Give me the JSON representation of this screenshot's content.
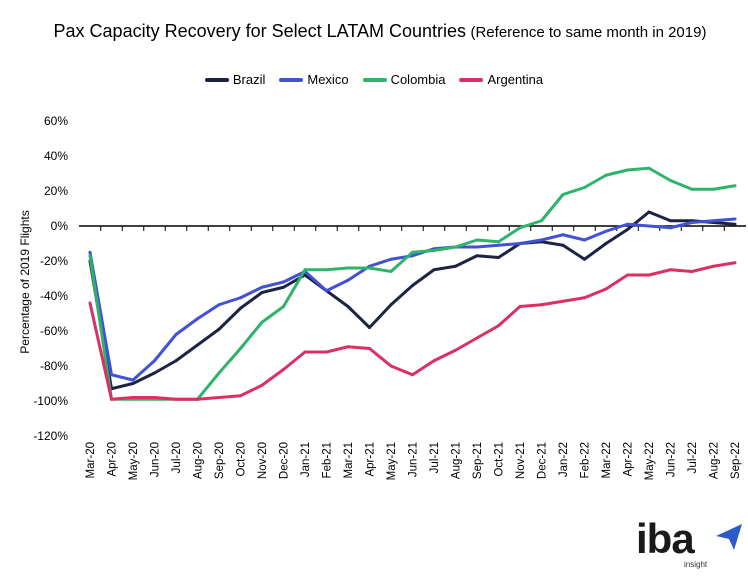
{
  "chart_data": {
    "type": "line",
    "title": "Pax Capacity Recovery for Select LATAM Countries",
    "subtitle": "(Reference to same month in 2019)",
    "xlabel": "",
    "ylabel": "Percentage of 2019 Flights",
    "ylim": [
      -120,
      60
    ],
    "yticks": [
      "60%",
      "40%",
      "20%",
      "0%",
      "-20%",
      "-40%",
      "-60%",
      "-80%",
      "-100%",
      "-120%"
    ],
    "ytick_values": [
      60,
      40,
      20,
      0,
      -20,
      -40,
      -60,
      -80,
      -100,
      -120
    ],
    "grid": false,
    "legend": "top",
    "categories": [
      "Mar-20",
      "Apr-20",
      "May-20",
      "Jun-20",
      "Jul-20",
      "Aug-20",
      "Sep-20",
      "Oct-20",
      "Nov-20",
      "Dec-20",
      "Jan-21",
      "Feb-21",
      "Mar-21",
      "Apr-21",
      "May-21",
      "Jun-21",
      "Jul-21",
      "Aug-21",
      "Sep-21",
      "Oct-21",
      "Nov-21",
      "Dec-21",
      "Jan-22",
      "Feb-22",
      "Mar-22",
      "Apr-22",
      "May-22",
      "Jun-22",
      "Jul-22",
      "Aug-22",
      "Sep-22"
    ],
    "series": [
      {
        "name": "Brazil",
        "color": "#1c2345",
        "values": [
          -20,
          -93,
          -90,
          -84,
          -77,
          -68,
          -59,
          -47,
          -38,
          -35,
          -28,
          -37,
          -46,
          -58,
          -45,
          -34,
          -25,
          -23,
          -17,
          -18,
          -10,
          -9,
          -11,
          -19,
          -10,
          -2,
          8,
          3,
          3,
          2,
          1
        ]
      },
      {
        "name": "Mexico",
        "color": "#4152d4",
        "values": [
          -15,
          -85,
          -88,
          -77,
          -62,
          -53,
          -45,
          -41,
          -35,
          -32,
          -26,
          -37,
          -31,
          -23,
          -19,
          -17,
          -13,
          -12,
          -12,
          -11,
          -10,
          -8,
          -5,
          -8,
          -3,
          1,
          0,
          -1,
          2,
          3,
          4
        ]
      },
      {
        "name": "Colombia",
        "color": "#2fb36b",
        "values": [
          -17,
          -99,
          -99,
          -99,
          -99,
          -99,
          -84,
          -70,
          -55,
          -46,
          -25,
          -25,
          -24,
          -24,
          -26,
          -15,
          -14,
          -12,
          -8,
          -9,
          -1,
          3,
          18,
          22,
          29,
          32,
          33,
          26,
          21,
          21,
          23
        ]
      },
      {
        "name": "Argentina",
        "color": "#dc2f64",
        "values": [
          -44,
          -99,
          -98,
          -98,
          -99,
          -99,
          -98,
          -97,
          -91,
          -82,
          -72,
          -72,
          -69,
          -70,
          -80,
          -85,
          -77,
          -71,
          -64,
          -57,
          -46,
          -45,
          -43,
          -41,
          -36,
          -28,
          -28,
          -25,
          -26,
          -23,
          -21
        ]
      }
    ]
  },
  "logo": {
    "text": "iba",
    "tagline": "insight",
    "accent": "#2b5cc8"
  }
}
